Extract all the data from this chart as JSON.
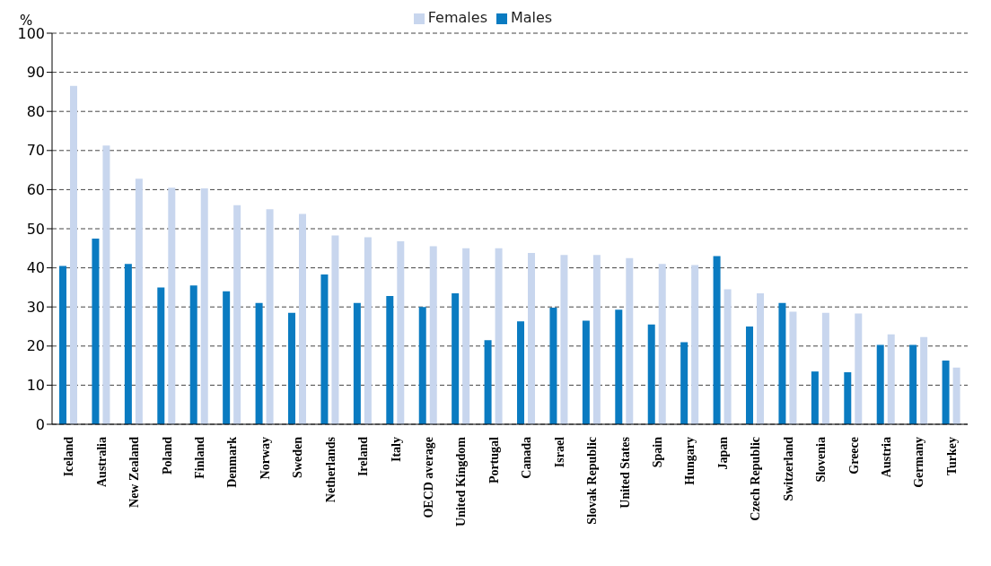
{
  "chart_data": {
    "type": "bar",
    "ylabel": "%",
    "categories": [
      "Iceland",
      "Australia",
      "New Zealand",
      "Poland",
      "Finland",
      "Denmark",
      "Norway",
      "Sweden",
      "Netherlands",
      "Ireland",
      "Italy",
      "OECD average",
      "United Kingdom",
      "Portugal",
      "Canada",
      "Israel",
      "Slovak Republic",
      "United States",
      "Spain",
      "Hungary",
      "Japan",
      "Czech Republic",
      "Switzerland",
      "Slovenia",
      "Greece",
      "Austria",
      "Germany",
      "Turkey"
    ],
    "series": [
      {
        "name": "Males",
        "color": "#0a7bc1",
        "values": [
          40.5,
          47.5,
          41,
          35,
          35.5,
          34,
          31,
          28.5,
          38.3,
          31,
          32.8,
          30,
          33.5,
          21.5,
          26.3,
          29.8,
          26.5,
          29.3,
          25.5,
          21,
          43,
          25,
          31,
          13.5,
          13.3,
          20.3,
          20.3,
          16.3
        ]
      },
      {
        "name": "Females",
        "color": "#c8d6ee",
        "values": [
          86.5,
          71.3,
          62.8,
          60.5,
          60.3,
          56,
          55,
          53.8,
          48.3,
          47.8,
          46.8,
          45.5,
          45,
          45,
          43.8,
          43.3,
          43.3,
          42.5,
          41,
          40.7,
          34.5,
          33.5,
          28.8,
          28.5,
          28.3,
          23,
          22.3,
          14.5
        ]
      }
    ],
    "ylim": [
      0,
      100
    ],
    "yticks": [
      0,
      10,
      20,
      30,
      40,
      50,
      60,
      70,
      80,
      90,
      100
    ],
    "grid": "y",
    "legend": "top"
  }
}
